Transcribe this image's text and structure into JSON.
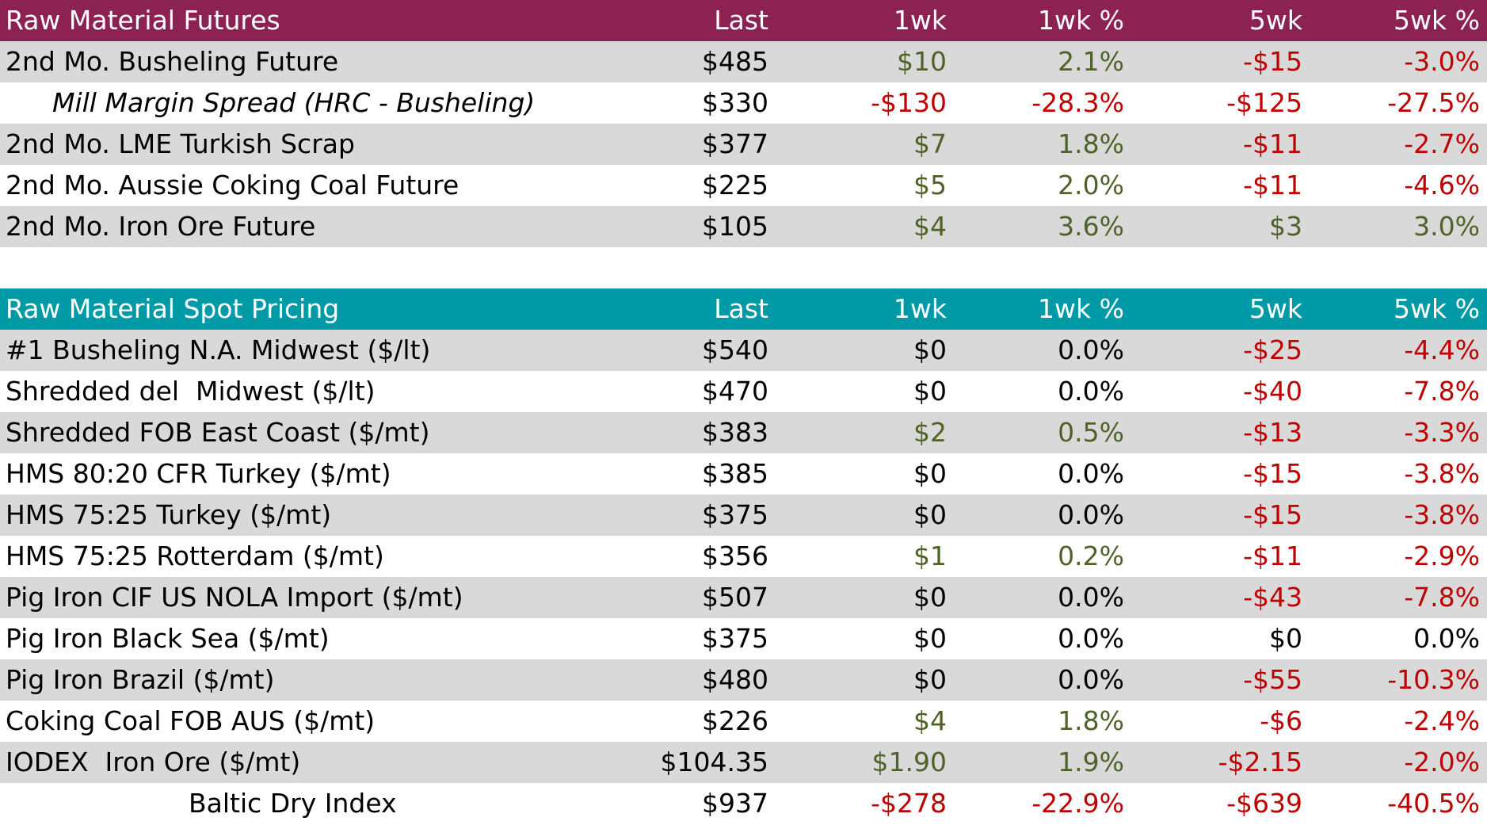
{
  "futures": {
    "header": {
      "title": "Raw Material Futures",
      "cols": [
        "Last",
        "1wk",
        "1wk %",
        "5wk",
        "5wk %"
      ]
    },
    "rows": [
      {
        "name": "2nd Mo. Busheling Future",
        "last": "$485",
        "wk1": "$10",
        "wk1p": "2.1%",
        "wk5": "-$15",
        "wk5p": "-3.0%"
      },
      {
        "name": "Mill Margin Spread (HRC - Busheling)",
        "last": "$330",
        "wk1": "-$130",
        "wk1p": "-28.3%",
        "wk5": "-$125",
        "wk5p": "-27.5%"
      },
      {
        "name": "2nd Mo. LME Turkish Scrap",
        "last": "$377",
        "wk1": "$7",
        "wk1p": "1.8%",
        "wk5": "-$11",
        "wk5p": "-2.7%"
      },
      {
        "name": "2nd Mo. Aussie Coking Coal Future",
        "last": "$225",
        "wk1": "$5",
        "wk1p": "2.0%",
        "wk5": "-$11",
        "wk5p": "-4.6%"
      },
      {
        "name": "2nd Mo. Iron Ore Future",
        "last": "$105",
        "wk1": "$4",
        "wk1p": "3.6%",
        "wk5": "$3",
        "wk5p": "3.0%"
      }
    ]
  },
  "spot": {
    "header": {
      "title": "Raw Material Spot Pricing",
      "cols": [
        "Last",
        "1wk",
        "1wk %",
        "5wk",
        "5wk %"
      ]
    },
    "rows": [
      {
        "name": "#1 Busheling N.A. Midwest ($/lt)",
        "last": "$540",
        "wk1": "$0",
        "wk1p": "0.0%",
        "wk5": "-$25",
        "wk5p": "-4.4%"
      },
      {
        "name": "Shredded del  Midwest ($/lt)",
        "last": "$470",
        "wk1": "$0",
        "wk1p": "0.0%",
        "wk5": "-$40",
        "wk5p": "-7.8%"
      },
      {
        "name": "Shredded FOB East Coast ($/mt)",
        "last": "$383",
        "wk1": "$2",
        "wk1p": "0.5%",
        "wk5": "-$13",
        "wk5p": "-3.3%"
      },
      {
        "name": "HMS 80:20 CFR Turkey ($/mt)",
        "last": "$385",
        "wk1": "$0",
        "wk1p": "0.0%",
        "wk5": "-$15",
        "wk5p": "-3.8%"
      },
      {
        "name": "HMS 75:25 Turkey ($/mt)",
        "last": "$375",
        "wk1": "$0",
        "wk1p": "0.0%",
        "wk5": "-$15",
        "wk5p": "-3.8%"
      },
      {
        "name": "HMS 75:25 Rotterdam ($/mt)",
        "last": "$356",
        "wk1": "$1",
        "wk1p": "0.2%",
        "wk5": "-$11",
        "wk5p": "-2.9%"
      },
      {
        "name": "Pig Iron CIF US NOLA Import ($/mt)",
        "last": "$507",
        "wk1": "$0",
        "wk1p": "0.0%",
        "wk5": "-$43",
        "wk5p": "-7.8%"
      },
      {
        "name": "Pig Iron Black Sea ($/mt)",
        "last": "$375",
        "wk1": "$0",
        "wk1p": "0.0%",
        "wk5": "$0",
        "wk5p": "0.0%"
      },
      {
        "name": "Pig Iron Brazil ($/mt)",
        "last": "$480",
        "wk1": "$0",
        "wk1p": "0.0%",
        "wk5": "-$55",
        "wk5p": "-10.3%"
      },
      {
        "name": "Coking Coal FOB AUS ($/mt)",
        "last": "$226",
        "wk1": "$4",
        "wk1p": "1.8%",
        "wk5": "-$6",
        "wk5p": "-2.4%"
      },
      {
        "name": "IODEX  Iron Ore ($/mt)",
        "last": "$104.35",
        "wk1": "$1.90",
        "wk1p": "1.9%",
        "wk5": "-$2.15",
        "wk5p": "-2.0%"
      },
      {
        "name": "Baltic Dry Index",
        "last": "$937",
        "wk1": "-$278",
        "wk1p": "-22.9%",
        "wk5": "-$639",
        "wk5p": "-40.5%"
      }
    ]
  },
  "colors": {
    "futures_header": "#8b2252",
    "spot_header": "#009aa6",
    "row_shade": "#d9d9d9",
    "positive": "#4f6228",
    "negative": "#c00000"
  }
}
